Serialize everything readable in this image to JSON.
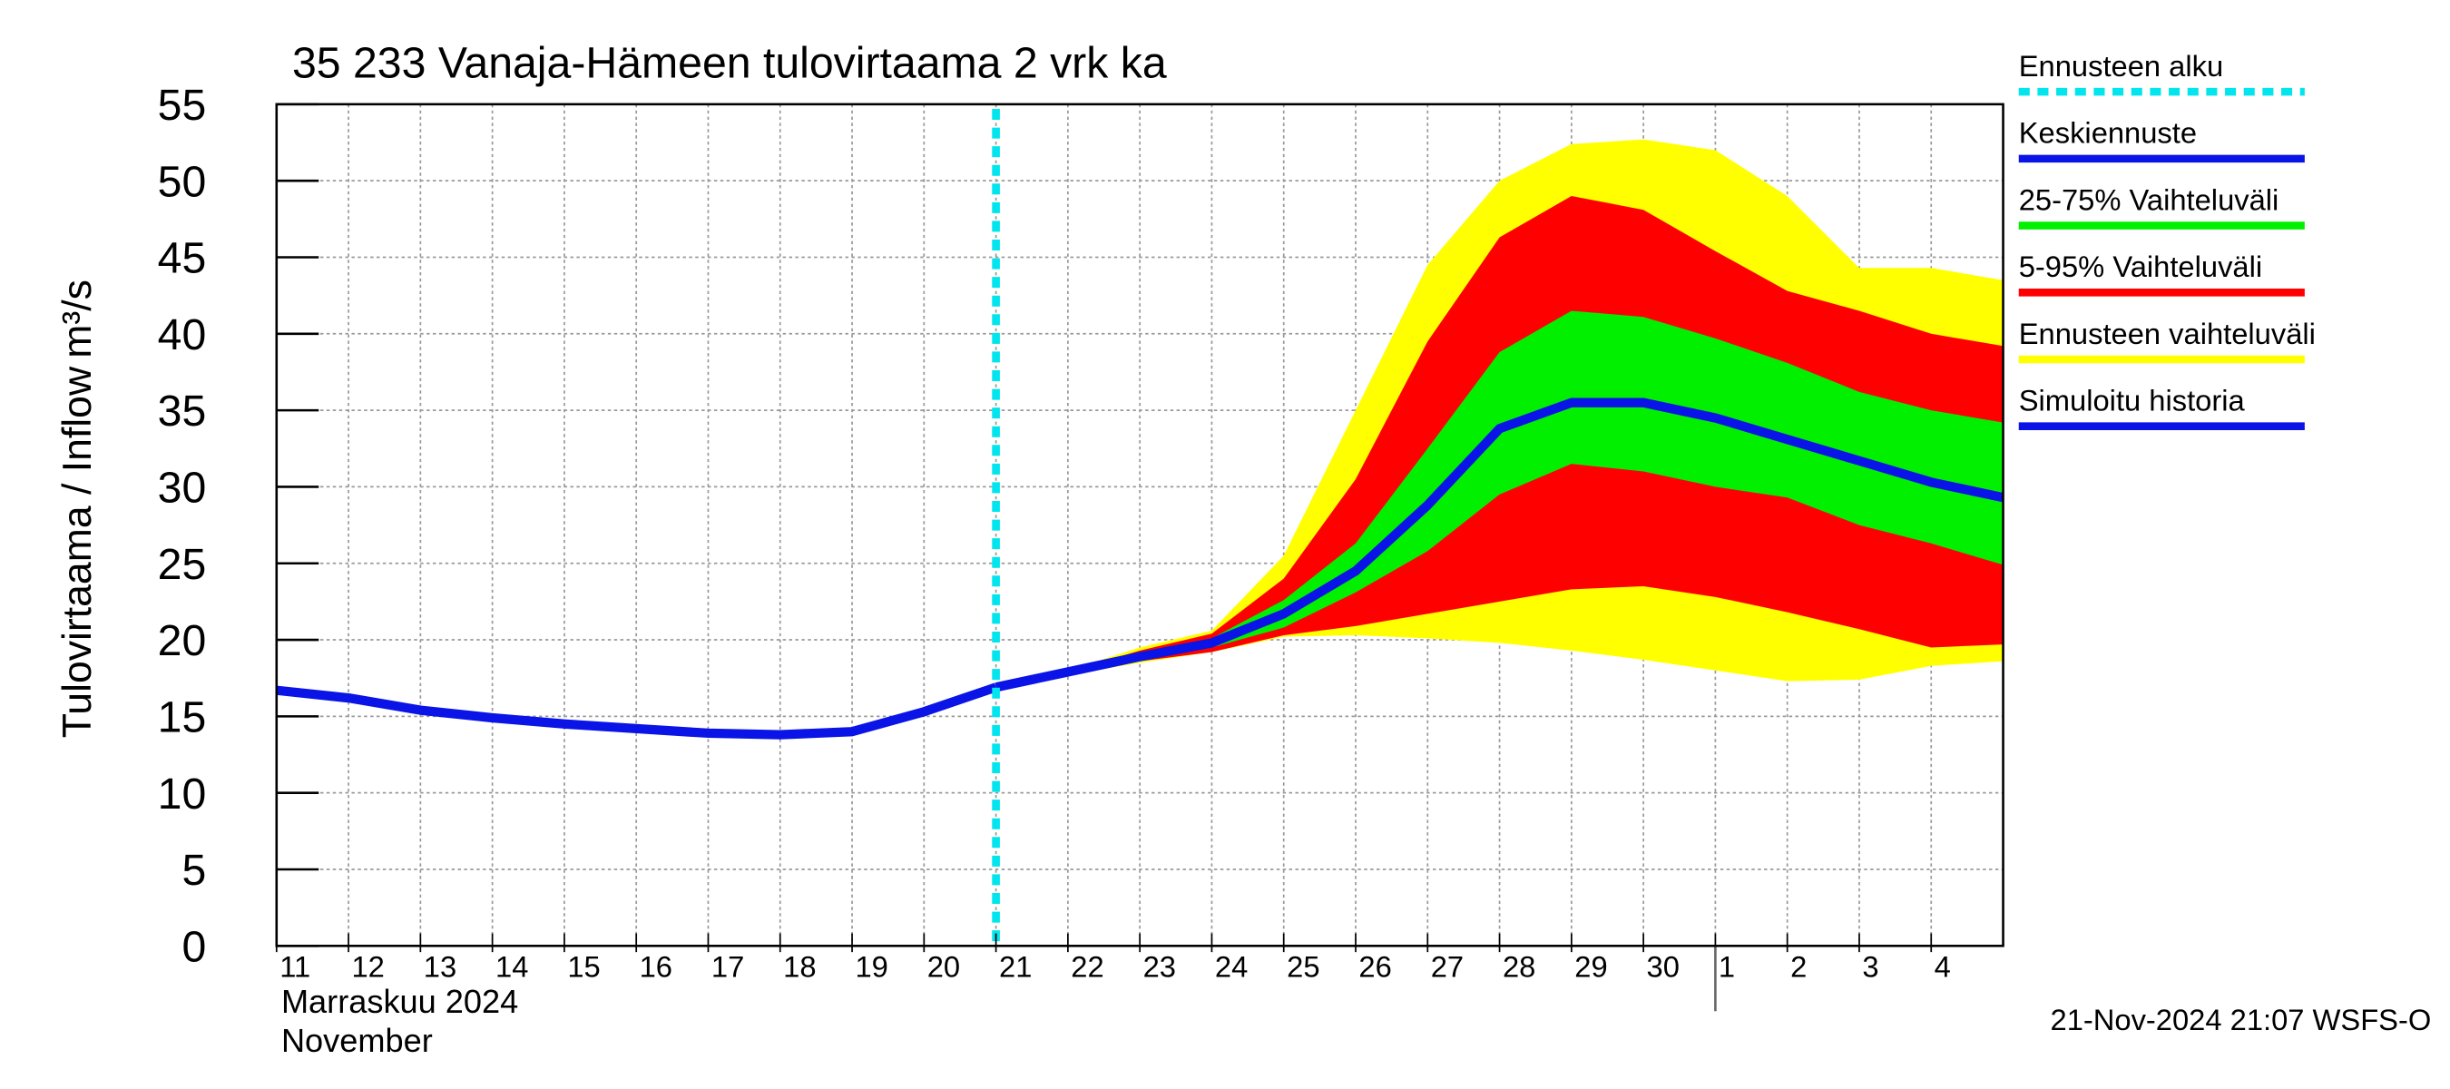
{
  "chart_data": {
    "type": "line",
    "title": "35 233 Vanaja-Hämeen tulovirtaama 2 vrk ka",
    "y_label": "Tulovirtaama / Inflow",
    "y_unit": "m³/s",
    "month_label_fi": "Marraskuu 2024",
    "month_label_en": "November",
    "timestamp": "21-Nov-2024 21:07 WSFS-O",
    "grid": true,
    "legend": "right",
    "xlim": [
      0,
      24
    ],
    "ylim": [
      0,
      55
    ],
    "yticks": [
      0,
      5,
      10,
      15,
      20,
      25,
      30,
      35,
      40,
      45,
      50,
      55
    ],
    "xticks": [
      {
        "value": 0,
        "label": "11"
      },
      {
        "value": 1,
        "label": "12"
      },
      {
        "value": 2,
        "label": "13"
      },
      {
        "value": 3,
        "label": "14"
      },
      {
        "value": 4,
        "label": "15"
      },
      {
        "value": 5,
        "label": "16"
      },
      {
        "value": 6,
        "label": "17"
      },
      {
        "value": 7,
        "label": "18"
      },
      {
        "value": 8,
        "label": "19"
      },
      {
        "value": 9,
        "label": "20"
      },
      {
        "value": 10,
        "label": "21"
      },
      {
        "value": 11,
        "label": "22"
      },
      {
        "value": 12,
        "label": "23"
      },
      {
        "value": 13,
        "label": "24"
      },
      {
        "value": 14,
        "label": "25"
      },
      {
        "value": 15,
        "label": "26"
      },
      {
        "value": 16,
        "label": "27"
      },
      {
        "value": 17,
        "label": "28"
      },
      {
        "value": 18,
        "label": "29"
      },
      {
        "value": 19,
        "label": "30"
      },
      {
        "value": 20,
        "label": "1"
      },
      {
        "value": 21,
        "label": "2"
      },
      {
        "value": 22,
        "label": "3"
      },
      {
        "value": 23,
        "label": "4"
      }
    ],
    "month_break": 20,
    "x": [
      0,
      1,
      2,
      3,
      4,
      5,
      6,
      7,
      8,
      9,
      10,
      11,
      12,
      13,
      14,
      15,
      16,
      17,
      18,
      19,
      20,
      21,
      22,
      23,
      24
    ],
    "forecast_start": {
      "name": "Ennusteen alku",
      "color": "#00e5ee",
      "x": 10
    },
    "series": [
      {
        "name": "Keskiennuste",
        "kind": "line",
        "color": "#0a14e6",
        "values": [
          null,
          null,
          null,
          null,
          null,
          null,
          null,
          null,
          null,
          null,
          16.9,
          17.9,
          18.9,
          19.8,
          21.7,
          24.5,
          28.8,
          33.8,
          35.5,
          35.5,
          34.5,
          33.1,
          31.7,
          30.3,
          29.3
        ]
      },
      {
        "name": "25-75% Vaihteluväli",
        "kind": "band",
        "color": "#00f000",
        "upper": [
          null,
          null,
          null,
          null,
          null,
          null,
          null,
          null,
          null,
          null,
          16.9,
          17.9,
          19.1,
          20.1,
          22.6,
          26.3,
          32.5,
          38.8,
          41.5,
          41.1,
          39.7,
          38.1,
          36.2,
          35.0,
          34.2
        ],
        "lower": [
          null,
          null,
          null,
          null,
          null,
          null,
          null,
          null,
          null,
          null,
          16.9,
          17.8,
          18.7,
          19.5,
          20.8,
          23.1,
          25.8,
          29.5,
          31.5,
          31.0,
          30.0,
          29.3,
          27.5,
          26.3,
          24.9
        ]
      },
      {
        "name": "5-95% Vaihteluväli",
        "kind": "band",
        "color": "#ff0000",
        "upper": [
          null,
          null,
          null,
          null,
          null,
          null,
          null,
          null,
          null,
          null,
          16.9,
          17.9,
          19.3,
          20.4,
          24.0,
          30.5,
          39.5,
          46.3,
          49.0,
          48.1,
          45.4,
          42.8,
          41.5,
          40.0,
          39.2
        ],
        "lower": [
          null,
          null,
          null,
          null,
          null,
          null,
          null,
          null,
          null,
          null,
          16.9,
          17.8,
          18.6,
          19.2,
          20.3,
          20.9,
          21.7,
          22.5,
          23.3,
          23.5,
          22.8,
          21.8,
          20.7,
          19.5,
          19.7
        ]
      },
      {
        "name": "Ennusteen vaihteluväli",
        "kind": "band",
        "color": "#ffff00",
        "upper": [
          null,
          null,
          null,
          null,
          null,
          null,
          null,
          null,
          null,
          null,
          16.9,
          18.0,
          19.5,
          20.6,
          25.5,
          35.0,
          44.5,
          50.0,
          52.4,
          52.7,
          52.0,
          49.0,
          44.3,
          44.3,
          43.5
        ],
        "lower": [
          null,
          null,
          null,
          null,
          null,
          null,
          null,
          null,
          null,
          null,
          16.9,
          17.7,
          18.5,
          19.2,
          20.2,
          20.3,
          20.1,
          19.8,
          19.3,
          18.7,
          18.0,
          17.3,
          17.4,
          18.3,
          18.6
        ]
      },
      {
        "name": "Simuloitu historia",
        "kind": "line",
        "color": "#0a14e6",
        "values": [
          16.7,
          16.2,
          15.4,
          14.9,
          14.5,
          14.2,
          13.9,
          13.8,
          14.0,
          15.3,
          16.9,
          null,
          null,
          null,
          null,
          null,
          null,
          null,
          null,
          null,
          null,
          null,
          null,
          null,
          null
        ]
      }
    ]
  }
}
